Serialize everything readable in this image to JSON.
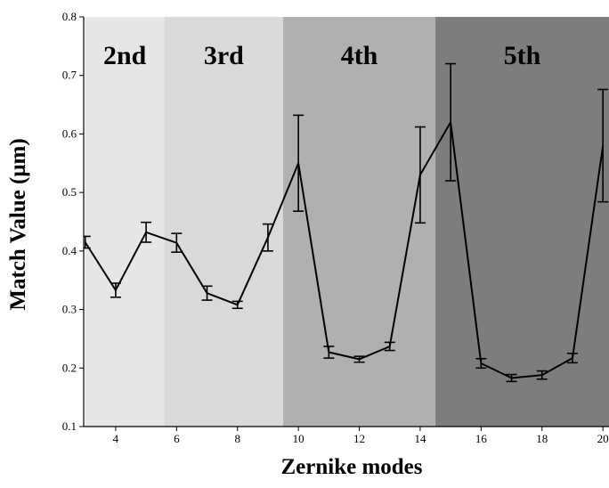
{
  "chart_data": {
    "type": "line",
    "xlabel": "Zernike modes",
    "ylabel": "Match Value (μm)",
    "xlim": [
      3,
      20
    ],
    "ylim": [
      0.1,
      0.8
    ],
    "x_ticks": [
      4,
      6,
      8,
      10,
      12,
      14,
      16,
      18,
      20
    ],
    "y_ticks": [
      0.1,
      0.2,
      0.3,
      0.4,
      0.5,
      0.6,
      0.7,
      0.8
    ],
    "grid": false,
    "bands": [
      {
        "label": "2nd",
        "x_start": 3,
        "x_end": 5.6,
        "color": "#e6e6e6"
      },
      {
        "label": "3rd",
        "x_start": 5.6,
        "x_end": 9.5,
        "color": "#d9d9d9"
      },
      {
        "label": "4th",
        "x_start": 9.5,
        "x_end": 14.5,
        "color": "#b0b0b0"
      },
      {
        "label": "5th",
        "x_start": 14.5,
        "x_end": 20.2,
        "color": "#7d7d7d"
      }
    ],
    "series": [
      {
        "x": [
          3,
          4,
          5,
          6,
          7,
          8,
          9,
          10,
          11,
          12,
          13,
          14,
          15,
          16,
          17,
          18,
          19,
          20
        ],
        "values": [
          0.415,
          0.333,
          0.432,
          0.414,
          0.328,
          0.308,
          0.423,
          0.55,
          0.227,
          0.215,
          0.237,
          0.53,
          0.62,
          0.208,
          0.183,
          0.188,
          0.217,
          0.58
        ],
        "err": [
          0.01,
          0.012,
          0.017,
          0.016,
          0.012,
          0.006,
          0.023,
          0.082,
          0.01,
          0.005,
          0.007,
          0.082,
          0.1,
          0.008,
          0.006,
          0.007,
          0.008,
          0.096
        ]
      }
    ]
  }
}
